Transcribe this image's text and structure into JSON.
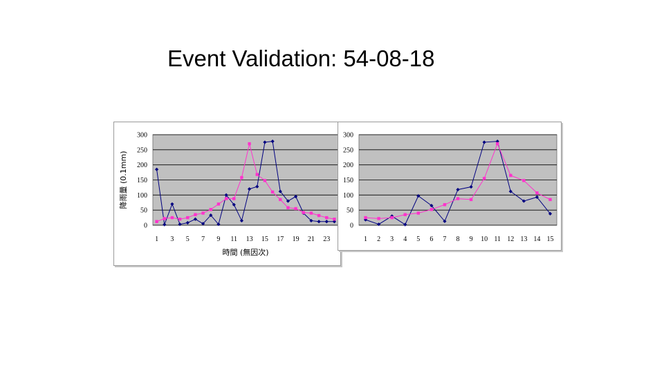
{
  "slide": {
    "title": "Event Validation: 54-08-18"
  },
  "colors": {
    "plot_bg": "#c0c0c0",
    "grid": "#000000",
    "series_blue": "#000080",
    "series_magenta": "#ff33cc"
  },
  "chart_data": [
    {
      "type": "line",
      "title": "",
      "xlabel": "時間 (無因次)",
      "ylabel": "降雨量 (0.1mm)",
      "ylim": [
        0,
        300
      ],
      "yticks": [
        0,
        50,
        100,
        150,
        200,
        250,
        300
      ],
      "xticks": [
        1,
        3,
        5,
        7,
        9,
        11,
        13,
        15,
        17,
        19,
        21,
        23
      ],
      "x": [
        1,
        2,
        3,
        4,
        5,
        6,
        7,
        8,
        9,
        10,
        11,
        12,
        13,
        14,
        15,
        16,
        17,
        18,
        19,
        20,
        21,
        22,
        23,
        24
      ],
      "grid": true,
      "legend": "none",
      "series": [
        {
          "color": "#000080",
          "marker": "diamond",
          "values": [
            185,
            2,
            70,
            3,
            8,
            20,
            5,
            33,
            3,
            100,
            68,
            15,
            120,
            128,
            275,
            278,
            112,
            80,
            95,
            40,
            15,
            12,
            12,
            12
          ]
        },
        {
          "color": "#ff33cc",
          "marker": "square",
          "values": [
            12,
            22,
            25,
            20,
            25,
            35,
            40,
            52,
            70,
            88,
            88,
            158,
            270,
            168,
            148,
            110,
            85,
            58,
            55,
            42,
            40,
            32,
            25,
            20
          ]
        }
      ]
    },
    {
      "type": "line",
      "title": "",
      "xlabel": "",
      "ylabel": "",
      "ylim": [
        0,
        300
      ],
      "yticks": [
        0,
        50,
        100,
        150,
        200,
        250,
        300
      ],
      "xticks": [
        1,
        2,
        3,
        4,
        5,
        6,
        7,
        8,
        9,
        10,
        11,
        12,
        13,
        14,
        15
      ],
      "x": [
        1,
        2,
        3,
        4,
        5,
        6,
        7,
        8,
        9,
        10,
        11,
        12,
        13,
        14,
        15
      ],
      "grid": true,
      "legend": "none",
      "series": [
        {
          "color": "#000080",
          "marker": "diamond",
          "values": [
            18,
            3,
            30,
            2,
            97,
            65,
            13,
            118,
            127,
            275,
            278,
            112,
            80,
            93,
            38
          ]
        },
        {
          "color": "#ff33cc",
          "marker": "square",
          "values": [
            25,
            22,
            25,
            35,
            40,
            52,
            68,
            88,
            85,
            155,
            270,
            165,
            148,
            107,
            85
          ]
        }
      ]
    }
  ]
}
